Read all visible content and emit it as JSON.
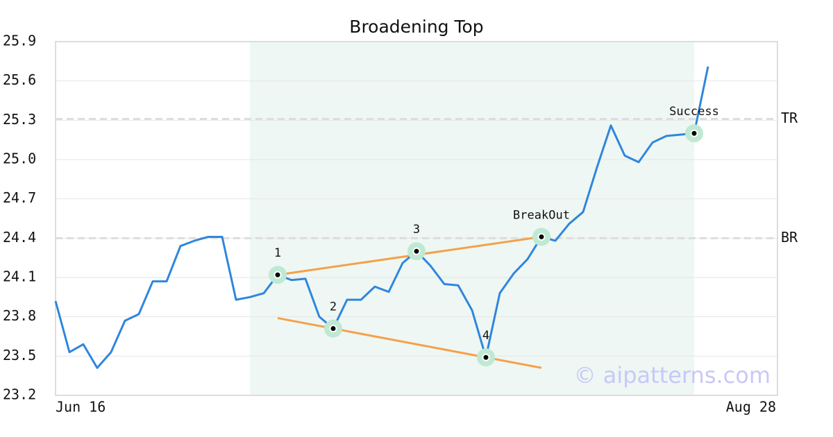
{
  "chart_data": {
    "type": "line",
    "title": "Broadening Top",
    "categories": [
      "Jun 16",
      null,
      null,
      null,
      null,
      null,
      null,
      null,
      null,
      null,
      null,
      null,
      null,
      null,
      null,
      null,
      null,
      null,
      null,
      null,
      null,
      null,
      null,
      null,
      null,
      null,
      null,
      null,
      null,
      null,
      null,
      null,
      null,
      null,
      null,
      null,
      null,
      null,
      null,
      null,
      null,
      null,
      null,
      null,
      null,
      null,
      null,
      null,
      null,
      null,
      null,
      null,
      "Aug 28"
    ],
    "values": [
      23.92,
      23.53,
      23.59,
      23.41,
      23.53,
      23.77,
      23.82,
      24.07,
      24.07,
      24.34,
      24.38,
      24.41,
      24.41,
      23.93,
      23.95,
      23.98,
      24.12,
      24.08,
      24.09,
      23.8,
      23.71,
      23.93,
      23.93,
      24.03,
      23.99,
      24.21,
      24.3,
      24.19,
      24.05,
      24.04,
      23.85,
      23.49,
      23.98,
      24.13,
      24.24,
      24.41,
      24.38,
      24.51,
      24.6,
      24.94,
      25.26,
      25.03,
      24.98,
      25.13,
      25.18,
      25.19,
      25.2,
      25.71,
      null,
      null,
      null,
      null,
      null
    ],
    "color": "#2e86de",
    "ylim": [
      23.2,
      25.9
    ],
    "yticks": [
      23.2,
      23.5,
      23.8,
      24.1,
      24.4,
      24.7,
      {
        "value": 25.0,
        "label": "25.0"
      },
      25.3,
      25.6,
      25.9
    ],
    "grid": true,
    "shade": {
      "from": 14,
      "to": 46,
      "color": "#eef7f3"
    },
    "levels": [
      {
        "label": "TR",
        "value": 25.31
      },
      {
        "label": "BR",
        "value": 24.4
      }
    ],
    "trendlines": [
      {
        "x": [
          16,
          35
        ],
        "y": [
          24.12,
          24.41
        ]
      },
      {
        "x": [
          16,
          35
        ],
        "y": [
          23.79,
          23.41
        ]
      }
    ],
    "trend_color": "#f5a04a",
    "annotations": [
      {
        "label": "1",
        "x": 16,
        "y": 24.12
      },
      {
        "label": "2",
        "x": 20,
        "y": 23.71
      },
      {
        "label": "3",
        "x": 26,
        "y": 24.3
      },
      {
        "label": "4",
        "x": 31,
        "y": 23.49
      },
      {
        "label": "BreakOut",
        "x": 35,
        "y": 24.41
      },
      {
        "label": "Success",
        "x": 46,
        "y": 25.2
      }
    ],
    "watermark": "© aipatterns.com"
  }
}
